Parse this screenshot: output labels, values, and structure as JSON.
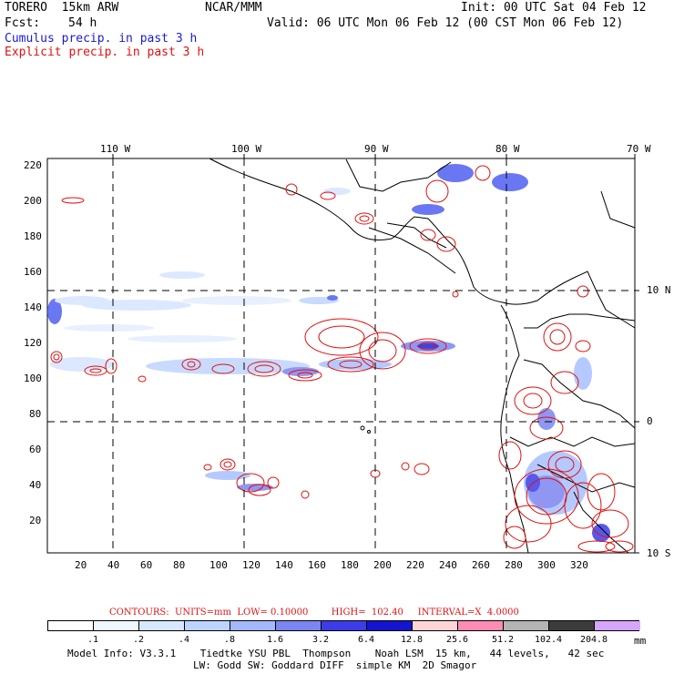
{
  "header": {
    "model": "TORERO  15km ARW",
    "org": "NCAR/MMM",
    "init": "Init: 00 UTC Sat 04 Feb 12",
    "fcst_label": "Fcst:",
    "fcst_value": "54 h",
    "valid": "Valid: 06 UTC Mon 06 Feb 12 (00 CST Mon 06 Feb 12)",
    "cumulus": "Cumulus precip. in past 3 h",
    "explicit": "Explicit precip. in past 3 h"
  },
  "top_lon_labels": [
    "110 W",
    "100 W",
    "90 W",
    "80 W",
    "70 W"
  ],
  "right_lat_labels": [
    "10 N",
    "0",
    "10 S"
  ],
  "left_y_ticks": [
    "220",
    "200",
    "180",
    "160",
    "140",
    "120",
    "100",
    "80",
    "60",
    "40",
    "20"
  ],
  "bottom_x_ticks": [
    "20",
    "40",
    "60",
    "80",
    "100",
    "120",
    "140",
    "160",
    "180",
    "200",
    "220",
    "240",
    "260",
    "280",
    "300",
    "320"
  ],
  "contours_text": "CONTOURS:  UNITS=mm  LOW= 0.10000        HIGH=  102.40     INTERVAL=X  4.0000",
  "legend": {
    "labels": [
      ".1",
      ".2",
      ".4",
      ".8",
      "1.6",
      "3.2",
      "6.4",
      "12.8",
      "25.6",
      "51.2",
      "102.4",
      "204.8"
    ],
    "unit": "mm",
    "colors": [
      "#ffffff",
      "#eef6ff",
      "#d6e8ff",
      "#bcd4ff",
      "#a3b8ff",
      "#7c86f0",
      "#3c3ce8",
      "#1414d0",
      "#ffd4d4",
      "#ff8cb4",
      "#b4b4b4",
      "#3c3c3c",
      "#d6a6ff"
    ]
  },
  "footer": {
    "line1": "Model Info: V3.3.1    Tiedtke YSU PBL  Thompson    Noah LSM  15 km,   44 levels,   42 sec",
    "line2": "LW: Godd SW: Goddard DIFF  simple KM  2D Smagor"
  }
}
